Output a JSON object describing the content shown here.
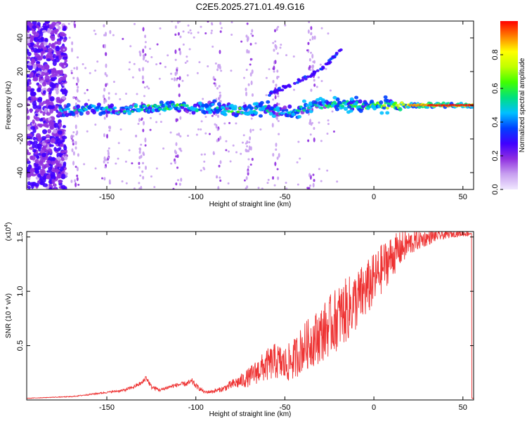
{
  "title": "C2E5.2025.271.01.49.G16",
  "chart_data": [
    {
      "type": "heatmap",
      "xlabel": "Height of straight line (km)",
      "ylabel": "Frequency (Hz)",
      "xlim": [
        -195,
        56
      ],
      "ylim": [
        -50,
        50
      ],
      "xticks": [
        -150,
        -100,
        -50,
        0,
        50
      ],
      "yticks": [
        -40,
        -20,
        0,
        20,
        40
      ],
      "colorbar": {
        "label": "Normalized spectral amplitude",
        "range": [
          0.0,
          1.0
        ],
        "ticks": [
          "0.0",
          "0.2",
          "0.4",
          "0.6",
          "0.8"
        ],
        "tick_values": [
          0.0,
          0.2,
          0.4,
          0.6,
          0.8
        ],
        "colormap": [
          "#f0e8ff",
          "#c8a0f0",
          "#9030e0",
          "#4000ff",
          "#0040ff",
          "#00c0ff",
          "#00e080",
          "#40ff00",
          "#c0ff00",
          "#ffff00",
          "#ff8000",
          "#ff0000"
        ]
      },
      "ridge": [
        {
          "x": -175,
          "y": -3,
          "a": 0.45
        },
        {
          "x": -160,
          "y": -2,
          "a": 0.5
        },
        {
          "x": -145,
          "y": -3,
          "a": 0.5
        },
        {
          "x": -130,
          "y": -2,
          "a": 0.55
        },
        {
          "x": -115,
          "y": -1,
          "a": 0.65
        },
        {
          "x": -100,
          "y": -2,
          "a": 0.5
        },
        {
          "x": -90,
          "y": -1,
          "a": 0.55
        },
        {
          "x": -75,
          "y": -3,
          "a": 0.6
        },
        {
          "x": -60,
          "y": -2,
          "a": 0.5
        },
        {
          "x": -50,
          "y": -4,
          "a": 0.45
        },
        {
          "x": -40,
          "y": -2,
          "a": 0.5
        },
        {
          "x": -30,
          "y": 0,
          "a": 0.55
        },
        {
          "x": -20,
          "y": 1,
          "a": 0.65
        },
        {
          "x": -10,
          "y": 0,
          "a": 0.7
        },
        {
          "x": 0,
          "y": 0,
          "a": 0.75
        },
        {
          "x": 10,
          "y": 0,
          "a": 0.8
        },
        {
          "x": 20,
          "y": 0,
          "a": 0.9
        },
        {
          "x": 35,
          "y": 0,
          "a": 0.98
        },
        {
          "x": 55,
          "y": 0,
          "a": 1.0
        }
      ],
      "branch": [
        {
          "x": -60,
          "y": 6
        },
        {
          "x": -45,
          "y": 13
        },
        {
          "x": -30,
          "y": 21
        },
        {
          "x": -18,
          "y": 33
        }
      ]
    },
    {
      "type": "line",
      "xlabel": "Height of straight line (km)",
      "ylabel": "SNR (10 * v/v)",
      "y_multiplier": "(x10",
      "y_multiplier_exp": "4",
      "y_multiplier_close": ")",
      "xlim": [
        -195,
        56
      ],
      "ylim": [
        0,
        15500
      ],
      "xticks": [
        -150,
        -100,
        -50,
        0,
        50
      ],
      "yticks": [
        5000,
        10000,
        15000
      ],
      "ytick_labels": [
        "0.5",
        "1.0",
        "1.5"
      ],
      "color": "#ee3333",
      "series": [
        {
          "x": [
            -195,
            -180,
            -170,
            -160,
            -150,
            -140,
            -135,
            -130,
            -128,
            -125,
            -120,
            -115,
            -110,
            -105,
            -102,
            -100,
            -95,
            -90,
            -85,
            -80,
            -75,
            -70,
            -65,
            -60,
            -55,
            -50,
            -45,
            -40,
            -35,
            -30,
            -25,
            -20,
            -15,
            -10,
            -5,
            0,
            5,
            10,
            15,
            20,
            25,
            30,
            35,
            40,
            45,
            50,
            55
          ],
          "y": [
            150,
            250,
            300,
            500,
            700,
            900,
            1200,
            1600,
            2100,
            1200,
            900,
            1200,
            1400,
            1500,
            1700,
            1300,
            700,
            800,
            1000,
            1400,
            1700,
            2100,
            2700,
            3200,
            3600,
            3200,
            3700,
            4800,
            5400,
            6000,
            6800,
            7600,
            8300,
            9100,
            10000,
            11000,
            12200,
            13200,
            13900,
            14400,
            14700,
            14900,
            15100,
            15200,
            15300,
            15300,
            15350
          ],
          "noise": [
            20,
            30,
            40,
            60,
            80,
            120,
            150,
            200,
            300,
            200,
            150,
            180,
            200,
            250,
            300,
            250,
            150,
            180,
            250,
            450,
            650,
            900,
            1200,
            1500,
            1700,
            1700,
            1900,
            2200,
            2400,
            2600,
            2800,
            3000,
            3000,
            2800,
            2700,
            2500,
            2300,
            2000,
            1600,
            1200,
            900,
            700,
            500,
            400,
            300,
            250,
            250
          ]
        }
      ]
    }
  ]
}
